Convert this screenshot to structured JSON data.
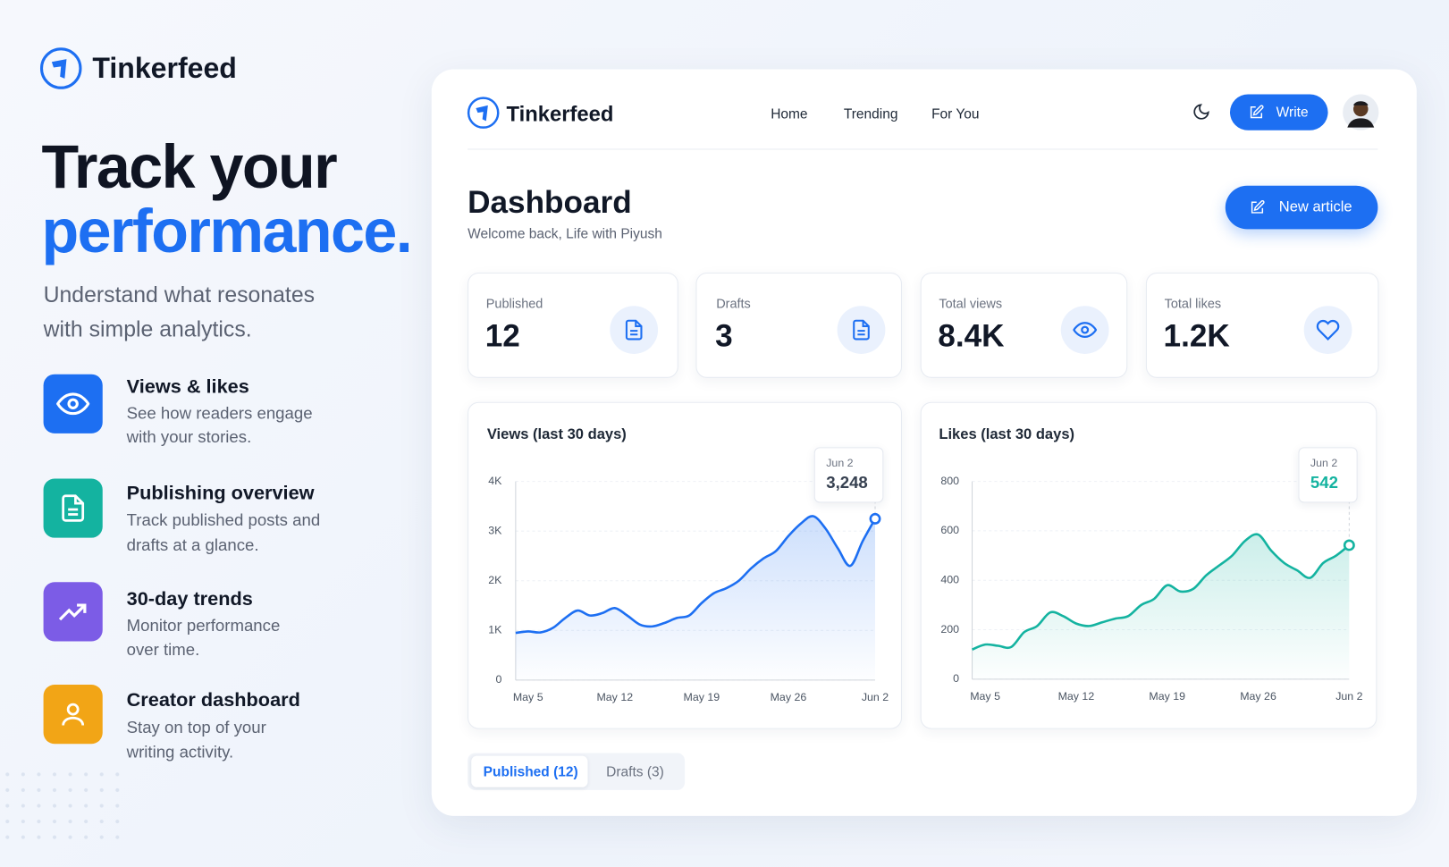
{
  "brand": {
    "name": "Tinkerfeed"
  },
  "hero": {
    "title_line1": "Track your",
    "title_line2": "performance.",
    "subtitle_lines": [
      "Understand what resonates",
      "with simple analytics."
    ]
  },
  "features": [
    {
      "title": "Views & likes",
      "description_lines": [
        "See how readers engage",
        "with your stories."
      ]
    },
    {
      "title": "Publishing overview",
      "description_lines": [
        "Track published posts and",
        "drafts at a glance."
      ]
    },
    {
      "title": "30-day trends",
      "description_lines": [
        "Monitor performance",
        "over time."
      ]
    },
    {
      "title": "Creator dashboard",
      "description_lines": [
        "Stay on top of your",
        "writing activity."
      ]
    }
  ],
  "dashboard": {
    "brand": "Tinkerfeed",
    "nav": [
      "Home",
      "Trending",
      "For You"
    ],
    "write_button": "Write",
    "title": "Dashboard",
    "welcome": "Welcome back, Life with Piyush",
    "new_article_button": "New article",
    "stats": [
      {
        "label": "Published",
        "value": "12"
      },
      {
        "label": "Drafts",
        "value": "3"
      },
      {
        "label": "Total views",
        "value": "8.4K"
      },
      {
        "label": "Total likes",
        "value": "1.2K"
      }
    ],
    "charts": [
      {
        "type": "line",
        "title": "Views (last 30 days)",
        "color": "#1d6ff2",
        "categories": [
          null,
          "May 5",
          null,
          null,
          null,
          null,
          null,
          null,
          "May 12",
          null,
          null,
          null,
          null,
          null,
          null,
          "May 19",
          null,
          null,
          null,
          null,
          null,
          null,
          "May 26",
          null,
          null,
          null,
          null,
          null,
          null,
          "Jun 2"
        ],
        "values": [
          950,
          980,
          960,
          1050,
          1250,
          1400,
          1300,
          1350,
          1450,
          1300,
          1120,
          1080,
          1150,
          1250,
          1300,
          1550,
          1750,
          1850,
          2000,
          2250,
          2450,
          2600,
          2900,
          3150,
          3300,
          3050,
          2650,
          2300,
          2800,
          3248
        ],
        "ylim": [
          0,
          4000
        ],
        "yticks": [
          0,
          {
            "value": 1000,
            "label": "1K"
          },
          {
            "value": 2000,
            "label": "2K"
          },
          {
            "value": 3000,
            "label": "3K"
          },
          {
            "value": 4000,
            "label": "4K"
          }
        ],
        "grid": true,
        "tooltip": {
          "date": "Jun 2",
          "label": "3,248"
        }
      },
      {
        "type": "line",
        "title": "Likes (last 30 days)",
        "color": "#14b3a0",
        "categories": [
          null,
          "May 5",
          null,
          null,
          null,
          null,
          null,
          null,
          "May 12",
          null,
          null,
          null,
          null,
          null,
          null,
          "May 19",
          null,
          null,
          null,
          null,
          null,
          null,
          "May 26",
          null,
          null,
          null,
          null,
          null,
          null,
          "Jun 2"
        ],
        "values": [
          120,
          140,
          135,
          130,
          190,
          215,
          270,
          255,
          225,
          215,
          230,
          245,
          255,
          300,
          325,
          380,
          355,
          365,
          420,
          460,
          500,
          560,
          585,
          520,
          470,
          440,
          410,
          470,
          500,
          542
        ],
        "ylim": [
          0,
          800
        ],
        "yticks": [
          0,
          200,
          400,
          600,
          800
        ],
        "grid": true,
        "tooltip": {
          "date": "Jun 2",
          "label": "542"
        }
      }
    ],
    "tabs": [
      "Published (12)",
      "Drafts (3)"
    ]
  }
}
